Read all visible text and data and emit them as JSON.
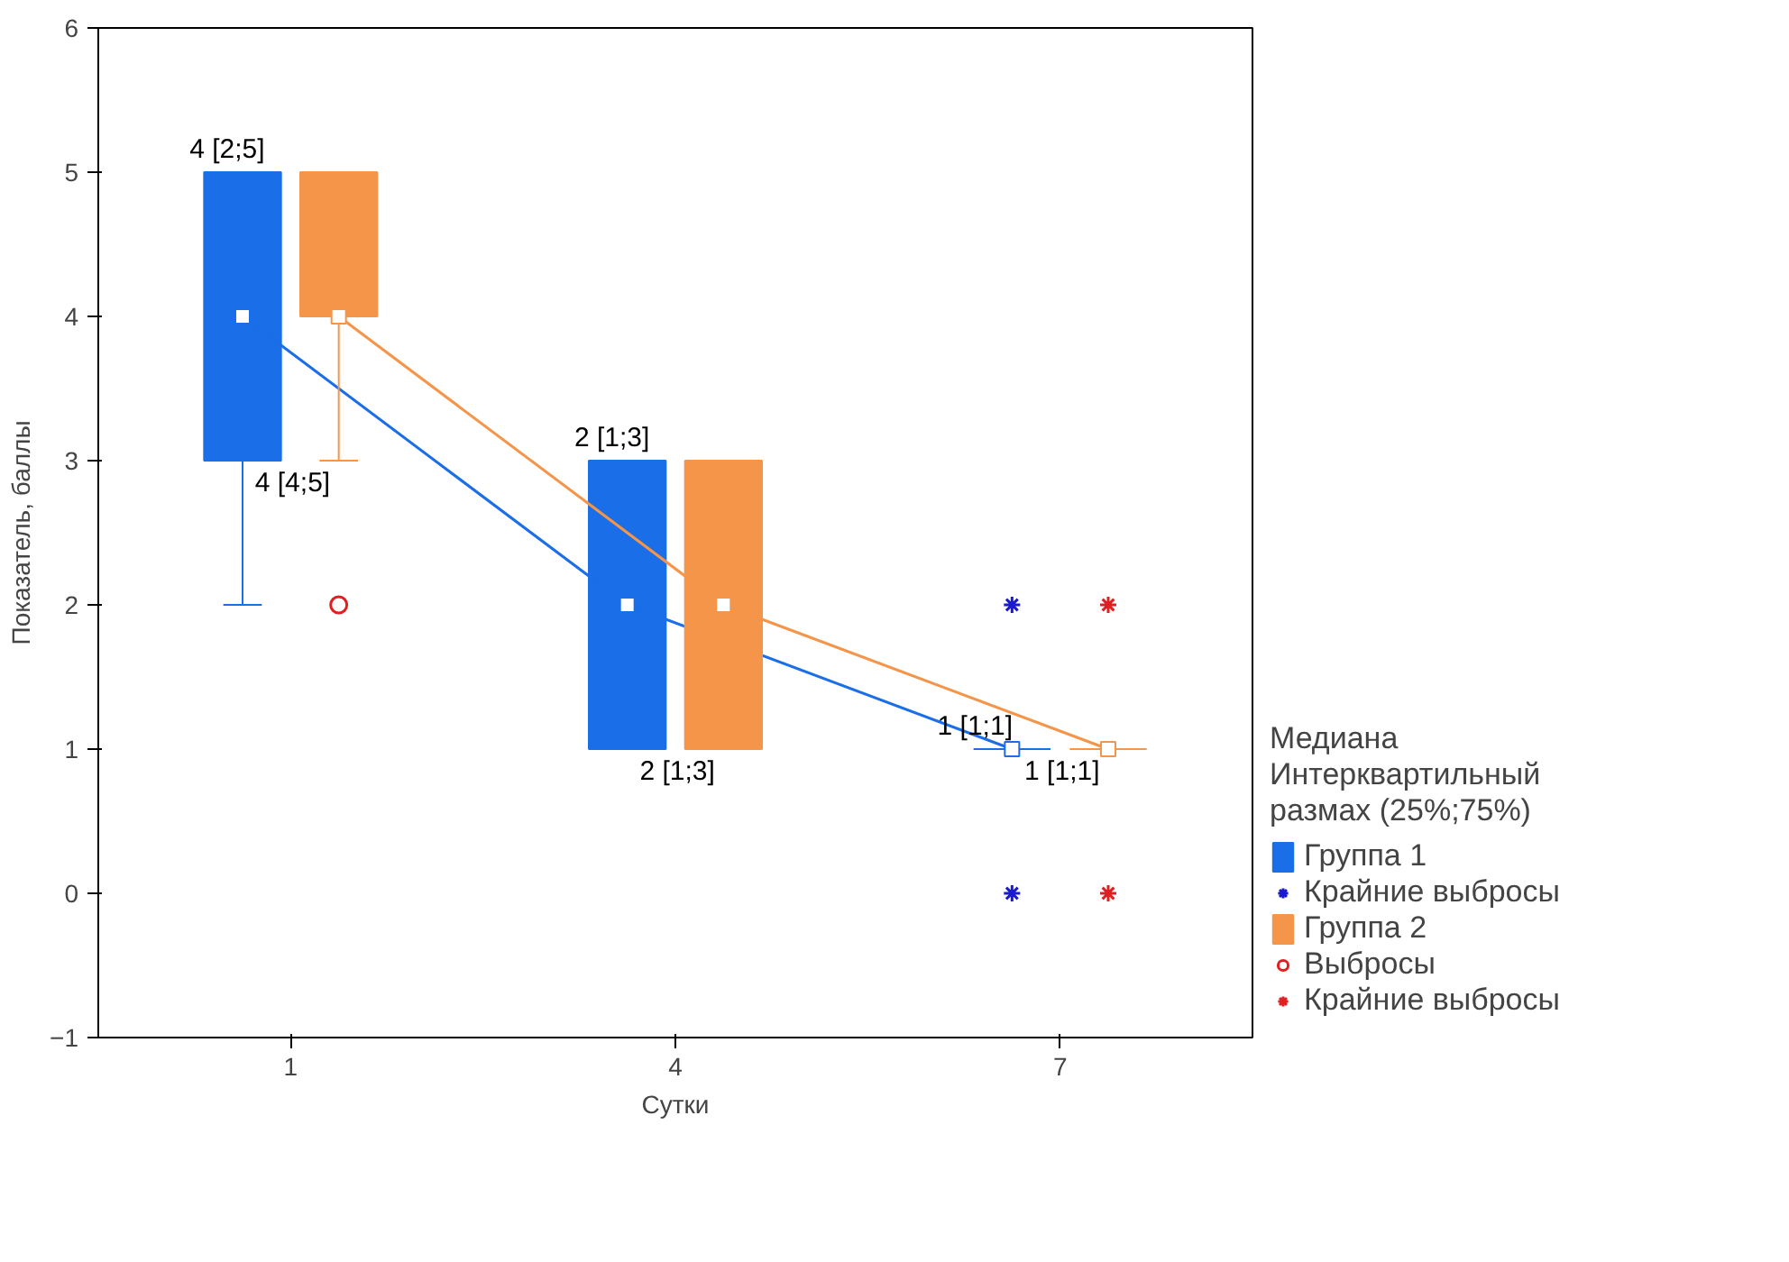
{
  "chart_data": {
    "type": "box",
    "xlabel": "Сутки",
    "ylabel": "Показатель, баллы",
    "legend_title": "Медиана\nИнтерквартильный\nразмах (25%;75%)",
    "categories": [
      "1",
      "4",
      "7"
    ],
    "ylim": [
      -1,
      6
    ],
    "yticks": [
      -1,
      0,
      1,
      2,
      3,
      4,
      5,
      6
    ],
    "grid": false,
    "legend": "bottom right",
    "marker": "square",
    "series": [
      {
        "name": "Группа 1",
        "type": "box",
        "color": "#1a6ee8",
        "boxes": [
          {
            "low": 2,
            "q1": 3,
            "median": 4,
            "q3": 5,
            "high": 5
          },
          {
            "low": 1,
            "q1": 1,
            "median": 2,
            "q3": 3,
            "high": 3
          },
          {
            "low": 1,
            "q1": 1,
            "median": 1,
            "q3": 1,
            "high": 1
          }
        ],
        "value_labels": [
          "4 [2;5]",
          "2 [1;3]",
          "1 [1;1]"
        ]
      },
      {
        "name": "Крайние выбросы",
        "type": "scatter",
        "marker": "cross",
        "color": "#1a1ad0",
        "x": [
          "7",
          "7"
        ],
        "values": [
          2,
          0
        ]
      },
      {
        "name": "Группа 2",
        "type": "box",
        "color": "#f5954a",
        "boxes": [
          {
            "low": 3,
            "q1": 4,
            "median": 4,
            "q3": 5,
            "high": 5
          },
          {
            "low": 1,
            "q1": 1,
            "median": 2,
            "q3": 3,
            "high": 3
          },
          {
            "low": 1,
            "q1": 1,
            "median": 1,
            "q3": 1,
            "high": 1
          }
        ],
        "value_labels": [
          "4 [4;5]",
          "2 [1;3]",
          "1 [1;1]"
        ]
      },
      {
        "name": "Выбросы",
        "type": "scatter",
        "marker": "circle",
        "color": "#e02020",
        "x": [
          "1"
        ],
        "values": [
          2
        ]
      },
      {
        "name": "Крайние выбросы",
        "type": "scatter",
        "marker": "cross",
        "color": "#e02020",
        "x": [
          "7",
          "7"
        ],
        "values": [
          2,
          0
        ]
      }
    ]
  }
}
